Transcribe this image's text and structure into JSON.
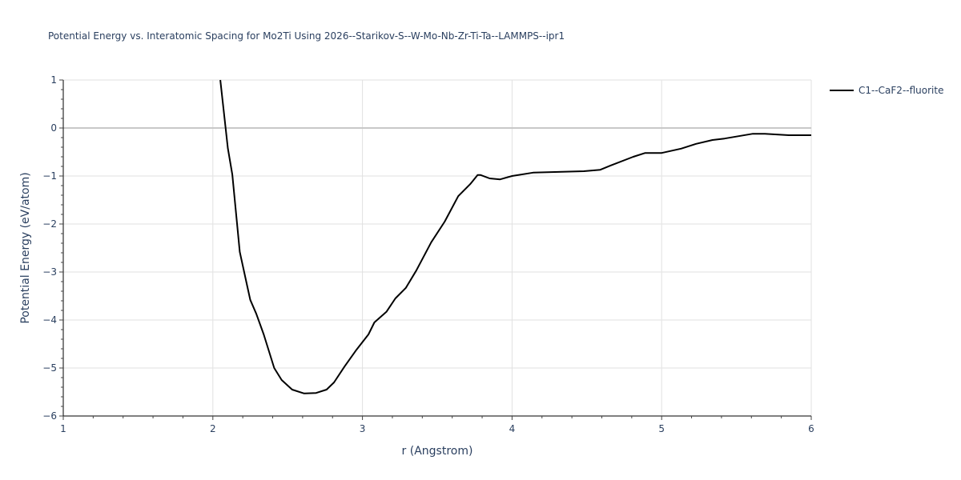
{
  "title": "Potential Energy vs. Interatomic Spacing for Mo2Ti Using 2026--Starikov-S--W-Mo-Nb-Zr-Ti-Ta--LAMMPS--ipr1",
  "legend": {
    "items": [
      {
        "label": "C1--CaF2--fluorite",
        "color": "#000000"
      }
    ]
  },
  "axes": {
    "x": {
      "title": "r (Angstrom)",
      "ticks": [
        "1",
        "2",
        "3",
        "4",
        "5",
        "6"
      ]
    },
    "y": {
      "title": "Potential Energy (eV/atom)",
      "ticks": [
        "1",
        "0",
        "−1",
        "−2",
        "−3",
        "−4",
        "−5",
        "−6"
      ]
    }
  },
  "chart_data": {
    "type": "line",
    "title": "Potential Energy vs. Interatomic Spacing for Mo2Ti Using 2026--Starikov-S--W-Mo-Nb-Zr-Ti-Ta--LAMMPS--ipr1",
    "xlabel": "r (Angstrom)",
    "ylabel": "Potential Energy (eV/atom)",
    "xlim": [
      1,
      6
    ],
    "ylim": [
      -6,
      1
    ],
    "grid": true,
    "legend_position": "top-right outside",
    "series": [
      {
        "name": "C1--CaF2--fluorite",
        "color": "#000000",
        "x": [
          2.05,
          2.1,
          2.13,
          2.18,
          2.23,
          2.25,
          2.29,
          2.34,
          2.41,
          2.46,
          2.53,
          2.61,
          2.69,
          2.76,
          2.81,
          2.88,
          2.96,
          3.04,
          3.08,
          3.16,
          3.22,
          3.29,
          3.36,
          3.46,
          3.55,
          3.64,
          3.72,
          3.77,
          3.79,
          3.85,
          3.92,
          4.0,
          4.14,
          4.48,
          4.59,
          4.66,
          4.81,
          4.89,
          5.0,
          5.13,
          5.23,
          5.34,
          5.42,
          5.61,
          5.69,
          5.85,
          6.0
        ],
        "y": [
          1.0,
          -0.42,
          -0.97,
          -2.58,
          -3.3,
          -3.58,
          -3.87,
          -4.3,
          -5.0,
          -5.25,
          -5.45,
          -5.53,
          -5.52,
          -5.45,
          -5.3,
          -4.97,
          -4.62,
          -4.3,
          -4.05,
          -3.83,
          -3.55,
          -3.33,
          -2.97,
          -2.38,
          -1.95,
          -1.42,
          -1.17,
          -0.98,
          -0.98,
          -1.05,
          -1.07,
          -1.0,
          -0.93,
          -0.9,
          -0.87,
          -0.78,
          -0.6,
          -0.52,
          -0.52,
          -0.43,
          -0.33,
          -0.25,
          -0.22,
          -0.12,
          -0.12,
          -0.15,
          -0.15
        ]
      }
    ]
  }
}
